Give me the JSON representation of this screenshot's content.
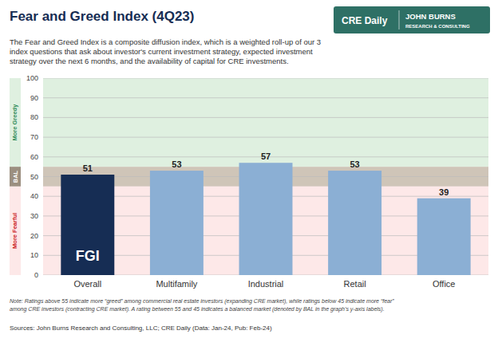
{
  "chart_data": {
    "type": "bar",
    "title": "Fear and Greed Index (4Q23)",
    "subtitle": "The Fear and Greed Index is a composite diffusion index, which is a weighted roll-up of our 3\nindex questions that ask about investor's current investment strategy, expected investment\nstrategy over the next 6 months, and the availability of capital for CRE investments.",
    "categories": [
      "Overall",
      "Multifamily",
      "Industrial",
      "Retail",
      "Office"
    ],
    "values": [
      51,
      53,
      57,
      53,
      39
    ],
    "colors": [
      "#162d54",
      "#8bafd4",
      "#8bafd4",
      "#8bafd4",
      "#8bafd4"
    ],
    "ylim": [
      0,
      100
    ],
    "yticks": [
      0,
      10,
      20,
      30,
      40,
      50,
      60,
      70,
      80,
      90,
      100
    ],
    "grid": true,
    "data_labels": true,
    "bands": [
      {
        "label": "More Greedy",
        "from": 55,
        "to": 100
      },
      {
        "label": "BAL",
        "from": 45,
        "to": 55
      },
      {
        "label": "More Fearful",
        "from": 0,
        "to": 45
      }
    ],
    "annotations": [
      "FGI",
      "CRE Daily",
      "JOHN BURNS",
      "RESEARCH & CONSULTING"
    ],
    "note": "Note: Ratings above 55 indicate more “greed” among commercial real estate investors (expanding CRE market), while ratings below 45 indicate more “fear”\namong CRE investors (contracting CRE market). A rating between 55 and 45 indicates a balanced market (denoted by BAL in the graph’s y-axis labels).",
    "sources": "Sources: John Burns Research and Consulting, LLC; CRE Daily (Data: Jan-24, Pub: Feb-24)"
  }
}
